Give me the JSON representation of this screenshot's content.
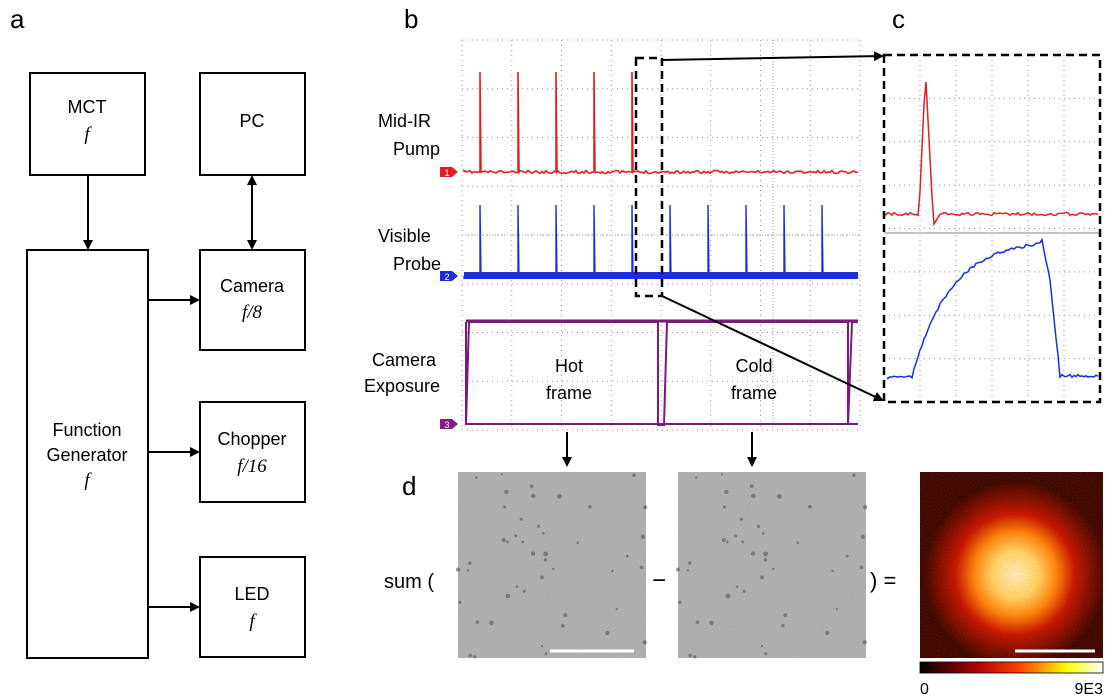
{
  "panels": {
    "a": "a",
    "b": "b",
    "c": "c",
    "d": "d"
  },
  "blocks": [
    {
      "label": "MCT",
      "freq": "f"
    },
    {
      "label": "PC"
    },
    {
      "label": "Camera",
      "freq": "f/8"
    },
    {
      "label": "Function Generator",
      "freq": "f"
    },
    {
      "label": "Chopper",
      "freq": "f/16"
    },
    {
      "label": "LED",
      "freq": "f"
    }
  ],
  "traces": [
    {
      "label": "Mid-IR Pump",
      "channel": "1"
    },
    {
      "label": "Visible Probe",
      "channel": "2"
    },
    {
      "label": "Camera Exposure",
      "channel": "3"
    }
  ],
  "frames": [
    "Hot frame",
    "Cold frame"
  ],
  "equation": {
    "sum": "sum (",
    "minus": "−",
    "equals": ") ="
  },
  "colorbar": {
    "min": "0",
    "max": "9E3"
  }
}
